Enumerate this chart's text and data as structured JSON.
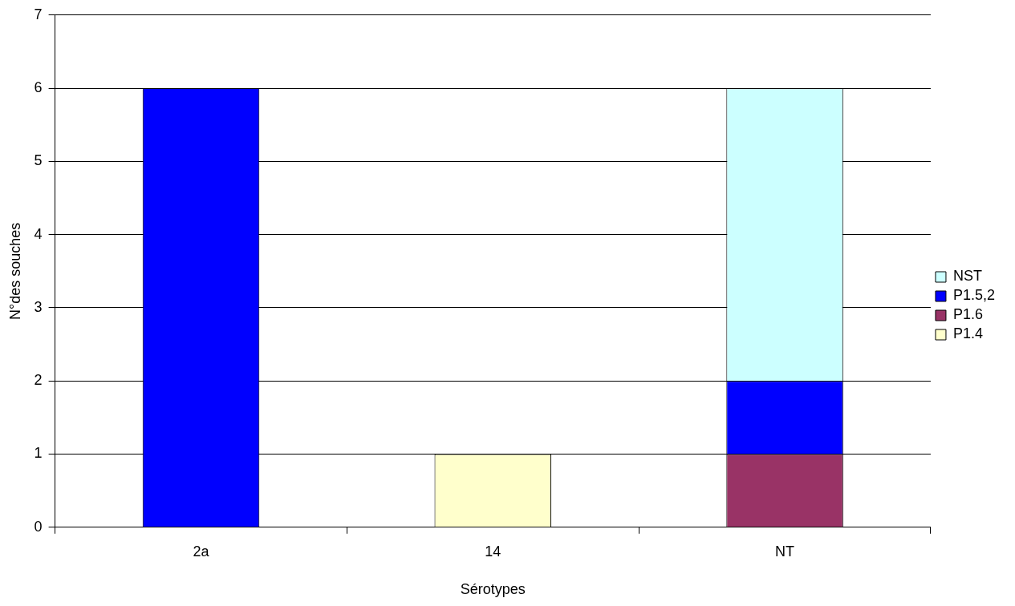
{
  "chart_data": {
    "type": "bar",
    "xlabel": "Sérotypes",
    "ylabel": "N°des souches",
    "categories": [
      "2a",
      "14",
      "NT"
    ],
    "stacked": true,
    "series": [
      {
        "name": "P1.4",
        "color": "#ffffcc",
        "values": [
          null,
          1,
          null
        ]
      },
      {
        "name": "P1.6",
        "color": "#993366",
        "values": [
          null,
          null,
          1
        ]
      },
      {
        "name": "P1.5,2",
        "color": "#0000ff",
        "values": [
          6,
          null,
          1
        ]
      },
      {
        "name": "NST",
        "color": "#ccffff",
        "values": [
          null,
          null,
          4
        ]
      }
    ],
    "ylim": [
      0,
      7
    ],
    "yticks": [
      0,
      1,
      2,
      3,
      4,
      5,
      6,
      7
    ],
    "grid": "y",
    "legend": "right"
  }
}
